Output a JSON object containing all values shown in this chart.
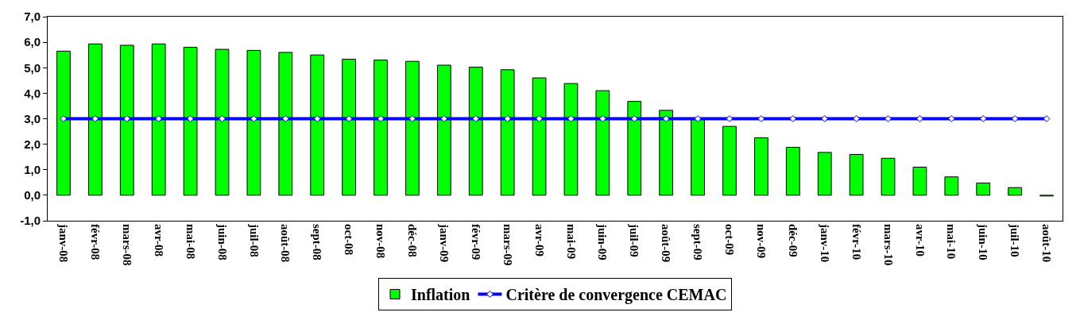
{
  "chart_data": {
    "type": "bar",
    "categories": [
      "janv-08",
      "févr-08",
      "mars-08",
      "avr-08",
      "mai-08",
      "juin-08",
      "juil-08",
      "août-08",
      "sept-08",
      "oct-08",
      "nov-08",
      "déc-08",
      "janv-09",
      "févr-09",
      "mars-09",
      "avr-09",
      "mai-09",
      "juin-09",
      "juil-09",
      "août-09",
      "sept-09",
      "oct-09",
      "nov-09",
      "déc-09",
      "janv-10",
      "févr-10",
      "mars-10",
      "avr-10",
      "mai-10",
      "juin-10",
      "juil-10",
      "août-10"
    ],
    "series": [
      {
        "name": "Inflation",
        "color": "#00ff00",
        "values": [
          5.65,
          5.93,
          5.88,
          5.93,
          5.8,
          5.72,
          5.68,
          5.6,
          5.5,
          5.33,
          5.3,
          5.25,
          5.1,
          5.02,
          4.92,
          4.6,
          4.38,
          4.1,
          3.68,
          3.33,
          2.98,
          2.7,
          2.25,
          1.88,
          1.68,
          1.6,
          1.45,
          1.1,
          0.72,
          0.48,
          0.3,
          -0.03
        ]
      },
      {
        "name": "Critère de convergence CEMAC",
        "type": "line",
        "color": "#0000ff",
        "marker": "diamond",
        "values": [
          3,
          3,
          3,
          3,
          3,
          3,
          3,
          3,
          3,
          3,
          3,
          3,
          3,
          3,
          3,
          3,
          3,
          3,
          3,
          3,
          3,
          3,
          3,
          3,
          3,
          3,
          3,
          3,
          3,
          3,
          3,
          3
        ]
      }
    ],
    "ylim": [
      -1,
      7
    ],
    "yticks": [
      {
        "value": -1,
        "label": "-1,0"
      },
      {
        "value": 0,
        "label": "0,0"
      },
      {
        "value": 1,
        "label": "1,0"
      },
      {
        "value": 2,
        "label": "2,0"
      },
      {
        "value": 3,
        "label": "3,0"
      },
      {
        "value": 4,
        "label": "4,0"
      },
      {
        "value": 5,
        "label": "5,0"
      },
      {
        "value": 6,
        "label": "6,0"
      },
      {
        "value": 7,
        "label": "7,0"
      }
    ],
    "legend": "bottom"
  }
}
